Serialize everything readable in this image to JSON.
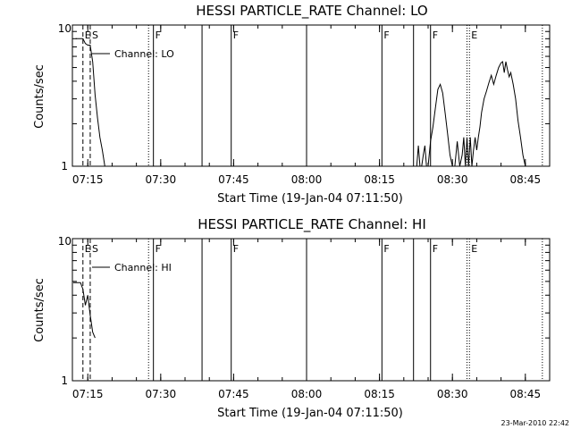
{
  "chart_data": [
    {
      "type": "line",
      "title": "HESSI PARTICLE_RATE Channel: LO",
      "xlabel": "Start Time (19-Jan-04 07:11:50)",
      "ylabel": "Counts/sec",
      "x_ticks": [
        "07:15",
        "07:30",
        "07:45",
        "08:00",
        "08:15",
        "08:30",
        "08:45"
      ],
      "y_ticks": [
        "1",
        "10"
      ],
      "ylim": [
        1,
        10
      ],
      "y_scale": "log",
      "xlim": [
        "07:11:50",
        "08:50:00"
      ],
      "legend": {
        "label": "Channel: LO",
        "placement": "top-left"
      },
      "markers": [
        {
          "label": "E",
          "time": "07:14:00",
          "style": "dashed"
        },
        {
          "label": "S",
          "time": "07:15:30",
          "style": "dashed"
        },
        {
          "label": "",
          "time": "07:27:30",
          "style": "dotted"
        },
        {
          "label": "F",
          "time": "07:28:30",
          "style": "solid"
        },
        {
          "label": "",
          "time": "07:38:30",
          "style": "solid"
        },
        {
          "label": "F",
          "time": "07:44:30",
          "style": "solid"
        },
        {
          "label": "",
          "time": "08:00:00",
          "style": "solid"
        },
        {
          "label": "F",
          "time": "08:15:30",
          "style": "solid"
        },
        {
          "label": "",
          "time": "08:22:00",
          "style": "solid"
        },
        {
          "label": "F",
          "time": "08:25:30",
          "style": "solid"
        },
        {
          "label": "",
          "time": "08:33:00",
          "style": "dotted"
        },
        {
          "label": "E",
          "time": "08:33:30",
          "style": "dotted"
        },
        {
          "label": "",
          "time": "08:48:30",
          "style": "dotted"
        }
      ],
      "series": [
        {
          "x": [
            "07:12:30",
            "07:13:00",
            "07:13:30",
            "07:14:00",
            "07:14:30",
            "07:15:00",
            "07:15:30",
            "07:16:00",
            "07:16:30",
            "07:17:00",
            "07:17:30",
            "07:18:00",
            "07:18:30"
          ],
          "y": [
            8,
            8,
            8,
            8,
            7.4,
            7.2,
            7.2,
            5.5,
            3.2,
            2.2,
            1.6,
            1.3,
            1.0
          ],
          "gap_after": true
        },
        {
          "x": [
            "08:22:40",
            "08:23:00",
            "08:23:20",
            "08:23:40",
            "08:24:00",
            "08:24:20",
            "08:24:40",
            "08:25:00",
            "08:25:30",
            "08:26:00",
            "08:26:30",
            "08:27:00",
            "08:27:30",
            "08:28:00",
            "08:28:30",
            "08:29:00",
            "08:29:30",
            "08:30:00",
            "08:30:30",
            "08:31:00",
            "08:31:30",
            "08:32:00",
            "08:32:20",
            "08:32:40",
            "08:33:00",
            "08:33:20",
            "08:33:40",
            "08:34:00",
            "08:34:20",
            "08:34:40",
            "08:35:00",
            "08:35:20",
            "08:35:40",
            "08:36:00",
            "08:36:30",
            "08:37:00",
            "08:37:30",
            "08:38:00",
            "08:38:30",
            "08:39:00",
            "08:39:30",
            "08:40:00",
            "08:40:20",
            "08:40:40",
            "08:41:00",
            "08:41:20",
            "08:41:40",
            "08:42:00",
            "08:42:30",
            "08:43:00",
            "08:43:30",
            "08:44:00",
            "08:44:30",
            "08:45:00"
          ],
          "y": [
            1.0,
            1.4,
            1.0,
            1.0,
            1.2,
            1.4,
            1.0,
            1.0,
            1.5,
            1.9,
            2.6,
            3.5,
            3.8,
            3.3,
            2.4,
            1.7,
            1.2,
            1.0,
            1.0,
            1.5,
            1.0,
            1.2,
            1.6,
            1.0,
            1.6,
            1.0,
            1.6,
            1.0,
            1.3,
            1.6,
            1.3,
            1.6,
            1.9,
            2.4,
            3.0,
            3.4,
            3.9,
            4.4,
            3.8,
            4.4,
            5.0,
            5.4,
            5.5,
            4.6,
            5.5,
            4.8,
            4.3,
            4.6,
            3.8,
            3.0,
            2.1,
            1.6,
            1.2,
            1.0
          ]
        }
      ]
    },
    {
      "type": "line",
      "title": "HESSI PARTICLE_RATE Channel: HI",
      "xlabel": "Start Time (19-Jan-04 07:11:50)",
      "ylabel": "Counts/sec",
      "x_ticks": [
        "07:15",
        "07:30",
        "07:45",
        "08:00",
        "08:15",
        "08:30",
        "08:45"
      ],
      "y_ticks": [
        "1",
        "10"
      ],
      "ylim": [
        1,
        10
      ],
      "y_scale": "log",
      "xlim": [
        "07:11:50",
        "08:50:00"
      ],
      "legend": {
        "label": "Channel: HI",
        "placement": "top-left"
      },
      "markers": [
        {
          "label": "E",
          "time": "07:14:00",
          "style": "dashed"
        },
        {
          "label": "S",
          "time": "07:15:30",
          "style": "dashed"
        },
        {
          "label": "",
          "time": "07:27:30",
          "style": "dotted"
        },
        {
          "label": "F",
          "time": "07:28:30",
          "style": "solid"
        },
        {
          "label": "",
          "time": "07:38:30",
          "style": "solid"
        },
        {
          "label": "F",
          "time": "07:44:30",
          "style": "solid"
        },
        {
          "label": "",
          "time": "08:00:00",
          "style": "solid"
        },
        {
          "label": "F",
          "time": "08:15:30",
          "style": "solid"
        },
        {
          "label": "",
          "time": "08:22:00",
          "style": "solid"
        },
        {
          "label": "F",
          "time": "08:25:30",
          "style": "solid"
        },
        {
          "label": "",
          "time": "08:33:00",
          "style": "dotted"
        },
        {
          "label": "E",
          "time": "08:33:30",
          "style": "dotted"
        },
        {
          "label": "",
          "time": "08:48:30",
          "style": "dotted"
        }
      ],
      "series": [
        {
          "x": [
            "07:12:00",
            "07:12:30",
            "07:13:00",
            "07:13:30",
            "07:14:00",
            "07:14:30",
            "07:15:00",
            "07:15:30",
            "07:16:00",
            "07:16:30"
          ],
          "y": [
            4.9,
            4.9,
            4.9,
            4.9,
            4.4,
            3.4,
            4.0,
            2.9,
            2.2,
            2.0
          ]
        }
      ]
    }
  ],
  "footer": {
    "timestamp": "23-Mar-2010 22:42"
  }
}
